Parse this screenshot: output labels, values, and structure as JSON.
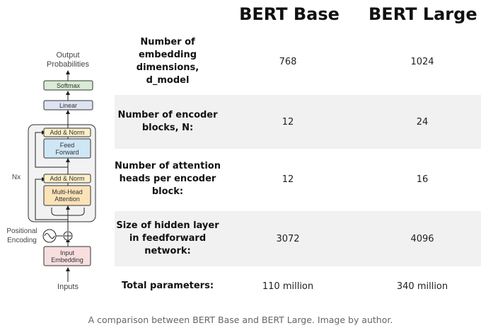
{
  "diagram": {
    "output_label": "Output\nProbabilities",
    "softmax": "Softmax",
    "linear": "Linear",
    "add_norm_top": "Add & Norm",
    "feed_forward": "Feed\nForward",
    "add_norm_bottom": "Add & Norm",
    "multi_head_attention": "Multi-Head\nAttention",
    "nx": "Nx",
    "positional_encoding": "Positional\nEncoding",
    "input_embedding": "Input\nEmbedding",
    "inputs": "Inputs",
    "colors": {
      "softmax": "#d8ecd3",
      "linear": "#dde3f2",
      "add_norm": "#fbefc9",
      "feed_forward": "#cfe6f5",
      "attention": "#fbe3b8",
      "embedding": "#f8dede",
      "stack": "#f2f2f2"
    }
  },
  "table": {
    "headers": [
      "BERT Base",
      "BERT Large"
    ],
    "rows": [
      {
        "label": "Number of\nembedding\ndimensions, d_model",
        "base": "768",
        "large": "1024"
      },
      {
        "label": "Number of encoder\nblocks, N:",
        "base": "12",
        "large": "24"
      },
      {
        "label": "Number of attention\nheads per encoder\nblock:",
        "base": "12",
        "large": "16"
      },
      {
        "label": "Size of hidden layer\nin feedforward\nnetwork:",
        "base": "3072",
        "large": "4096"
      },
      {
        "label": "Total parameters:",
        "base": "110 million",
        "large": "340 million"
      }
    ]
  },
  "caption": "A comparison between BERT Base and BERT Large. Image by author."
}
